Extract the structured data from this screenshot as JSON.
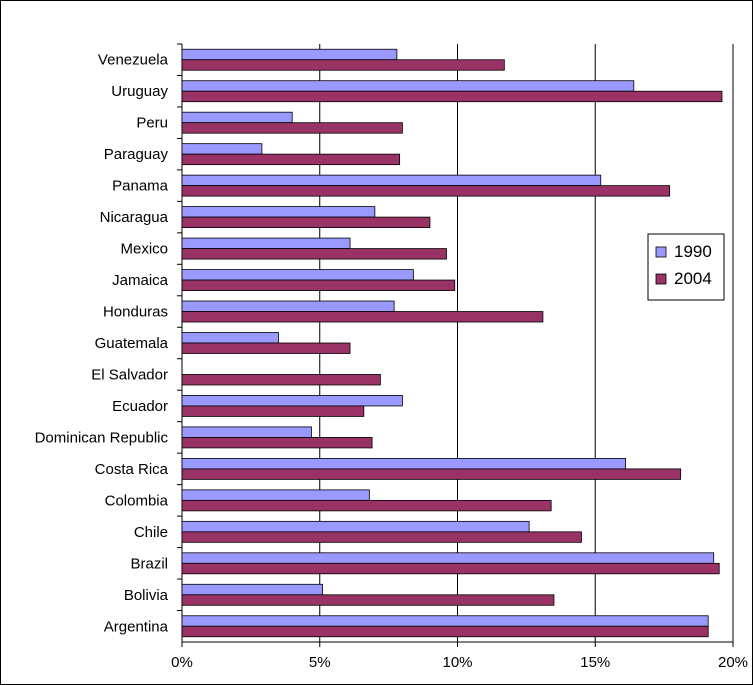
{
  "chart_data": {
    "type": "bar",
    "orientation": "horizontal",
    "title": "",
    "xlabel": "",
    "ylabel": "",
    "categories": [
      "Venezuela",
      "Uruguay",
      "Peru",
      "Paraguay",
      "Panama",
      "Nicaragua",
      "Mexico",
      "Jamaica",
      "Honduras",
      "Guatemala",
      "El Salvador",
      "Ecuador",
      "Dominican Republic",
      "Costa Rica",
      "Colombia",
      "Chile",
      "Brazil",
      "Bolivia",
      "Argentina"
    ],
    "series": [
      {
        "name": "1990",
        "color": "#9999ff",
        "values": [
          7.8,
          16.4,
          4.0,
          2.9,
          15.2,
          7.0,
          6.1,
          8.4,
          7.7,
          3.5,
          null,
          8.0,
          4.7,
          16.1,
          6.8,
          12.6,
          19.3,
          5.1,
          19.1
        ]
      },
      {
        "name": "2004",
        "color": "#993366",
        "values": [
          11.7,
          19.6,
          8.0,
          7.9,
          17.7,
          9.0,
          9.6,
          9.9,
          13.1,
          6.1,
          7.2,
          6.6,
          6.9,
          18.1,
          13.4,
          14.5,
          19.5,
          13.5,
          19.1
        ]
      }
    ],
    "xlim": [
      0,
      20
    ],
    "xticks": [
      "0%",
      "5%",
      "10%",
      "15%",
      "20%"
    ],
    "grid": true,
    "legend_position": "right"
  }
}
